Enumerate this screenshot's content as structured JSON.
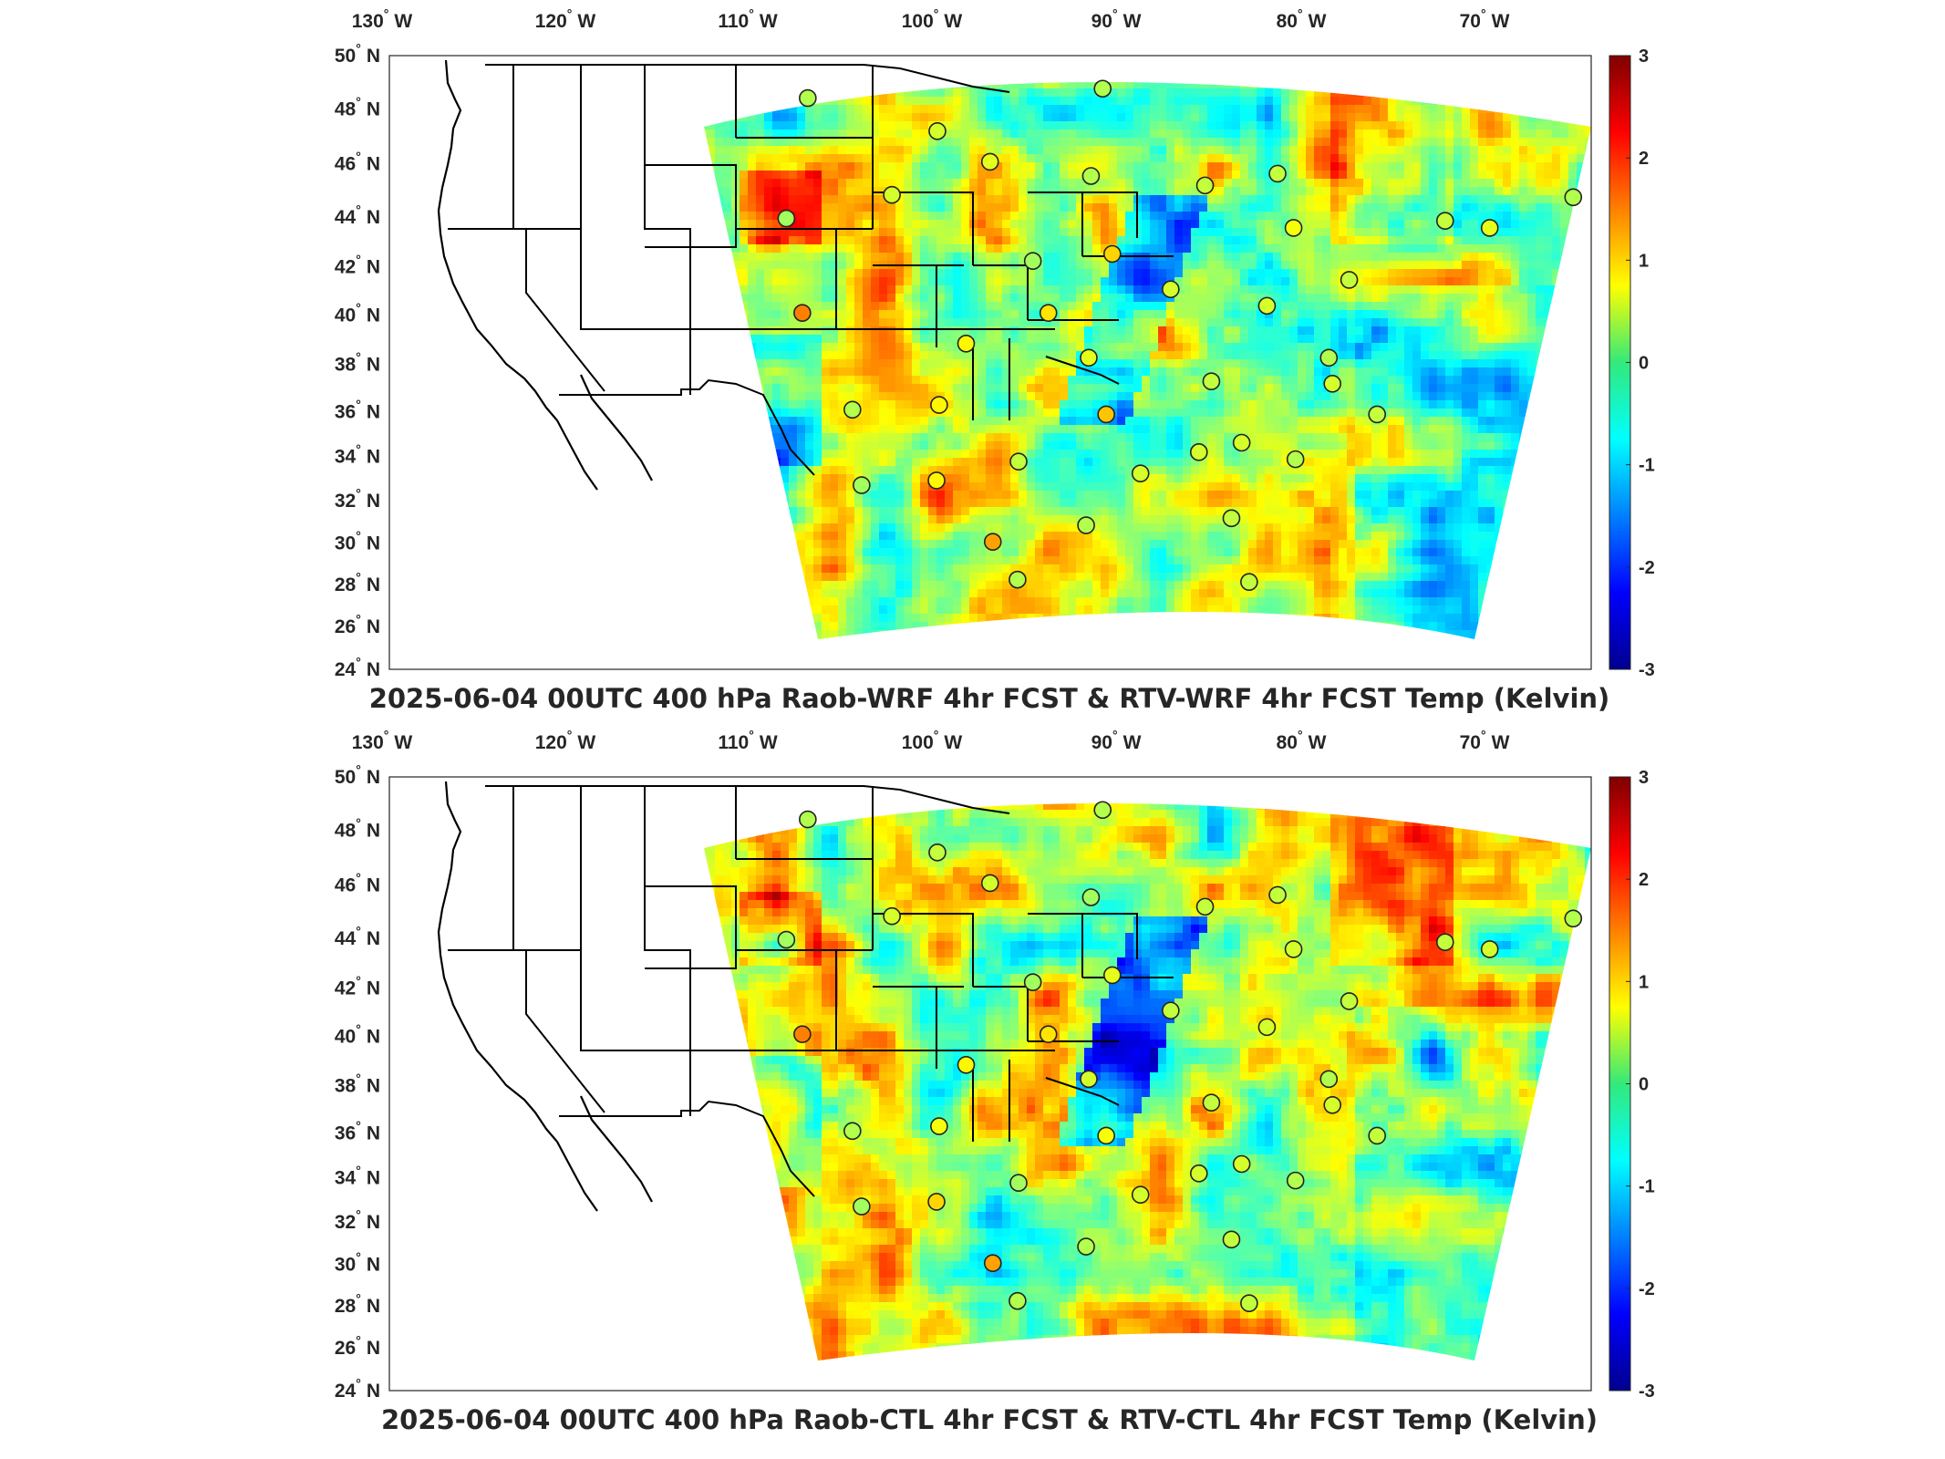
{
  "panels": [
    {
      "id": "top",
      "title": "2025-06-04 00UTC 400 hPa Raob-WRF 4hr FCST & RTV-WRF 4hr FCST Temp (Kelvin)",
      "lon_ticks": [
        "130",
        "120",
        "110",
        "100",
        "90",
        "80",
        "70"
      ],
      "lon_hemi": "W",
      "lat_ticks": [
        "50",
        "48",
        "46",
        "44",
        "42",
        "40",
        "38",
        "36",
        "34",
        "32",
        "30",
        "28",
        "26",
        "24"
      ],
      "lat_hemi": "N",
      "colorbar_ticks": [
        "3",
        "2",
        "1",
        "0",
        "-1",
        "-2",
        "-3"
      ],
      "stations": [
        {
          "lon": -106.6,
          "lat": 48.2,
          "diff": 0.3
        },
        {
          "lon": -100.8,
          "lat": 46.8,
          "diff": 0.5
        },
        {
          "lon": -93.2,
          "lat": 48.6,
          "diff": 0.3
        },
        {
          "lon": -98.4,
          "lat": 45.5,
          "diff": 0.6
        },
        {
          "lon": -93.6,
          "lat": 44.9,
          "diff": 0.3
        },
        {
          "lon": -88.1,
          "lat": 44.5,
          "diff": 0.4
        },
        {
          "lon": -84.7,
          "lat": 45.0,
          "diff": 0.4
        },
        {
          "lon": -103.2,
          "lat": 44.1,
          "diff": 0.5
        },
        {
          "lon": -108.5,
          "lat": 43.1,
          "diff": 0.2
        },
        {
          "lon": -83.5,
          "lat": 42.7,
          "diff": 0.7
        },
        {
          "lon": -76.1,
          "lat": 43.0,
          "diff": 0.4
        },
        {
          "lon": -73.8,
          "lat": 42.7,
          "diff": 0.6
        },
        {
          "lon": -70.2,
          "lat": 44.0,
          "diff": 0.3
        },
        {
          "lon": -92.4,
          "lat": 41.6,
          "diff": 1.0
        },
        {
          "lon": -96.4,
          "lat": 41.3,
          "diff": 0.2
        },
        {
          "lon": -89.3,
          "lat": 40.1,
          "diff": 0.5
        },
        {
          "lon": -80.2,
          "lat": 40.5,
          "diff": 0.4
        },
        {
          "lon": -108.5,
          "lat": 39.1,
          "diff": 1.5
        },
        {
          "lon": -95.6,
          "lat": 39.1,
          "diff": 0.9
        },
        {
          "lon": -84.2,
          "lat": 39.4,
          "diff": 0.5
        },
        {
          "lon": -100.0,
          "lat": 37.8,
          "diff": 0.8
        },
        {
          "lon": -93.4,
          "lat": 37.2,
          "diff": 0.6
        },
        {
          "lon": -80.4,
          "lat": 37.2,
          "diff": 0.3
        },
        {
          "lon": -86.6,
          "lat": 36.2,
          "diff": 0.4
        },
        {
          "lon": -79.9,
          "lat": 36.1,
          "diff": 0.5
        },
        {
          "lon": -101.7,
          "lat": 35.2,
          "diff": 0.8
        },
        {
          "lon": -106.6,
          "lat": 35.0,
          "diff": 0.3
        },
        {
          "lon": -92.3,
          "lat": 34.8,
          "diff": 1.1
        },
        {
          "lon": -77.0,
          "lat": 34.8,
          "diff": 0.4
        },
        {
          "lon": -97.3,
          "lat": 32.8,
          "diff": 0.4
        },
        {
          "lon": -90.1,
          "lat": 32.3,
          "diff": 0.5
        },
        {
          "lon": -86.8,
          "lat": 33.2,
          "diff": 0.5
        },
        {
          "lon": -84.4,
          "lat": 33.6,
          "diff": 0.5
        },
        {
          "lon": -81.1,
          "lat": 32.9,
          "diff": 0.3
        },
        {
          "lon": -102.2,
          "lat": 32.0,
          "diff": 0.8
        },
        {
          "lon": -106.7,
          "lat": 31.8,
          "diff": 0.2
        },
        {
          "lon": -93.2,
          "lat": 30.1,
          "diff": 0.3
        },
        {
          "lon": -84.3,
          "lat": 30.4,
          "diff": 0.4
        },
        {
          "lon": -99.0,
          "lat": 29.4,
          "diff": 1.3
        },
        {
          "lon": -97.5,
          "lat": 27.8,
          "diff": 0.3
        },
        {
          "lon": -82.5,
          "lat": 27.7,
          "diff": 0.4
        }
      ]
    },
    {
      "id": "bottom",
      "title": "2025-06-04 00UTC 400 hPa Raob-CTL 4hr FCST & RTV-CTL 4hr FCST Temp (Kelvin)",
      "lon_ticks": [
        "130",
        "120",
        "110",
        "100",
        "90",
        "80",
        "70"
      ],
      "lon_hemi": "W",
      "lat_ticks": [
        "50",
        "48",
        "46",
        "44",
        "42",
        "40",
        "38",
        "36",
        "34",
        "32",
        "30",
        "28",
        "26",
        "24"
      ],
      "lat_hemi": "N",
      "colorbar_ticks": [
        "3",
        "2",
        "1",
        "0",
        "-1",
        "-2",
        "-3"
      ],
      "stations": [
        {
          "lon": -106.6,
          "lat": 48.2,
          "diff": 0.3
        },
        {
          "lon": -100.8,
          "lat": 46.8,
          "diff": 0.4
        },
        {
          "lon": -93.2,
          "lat": 48.6,
          "diff": 0.3
        },
        {
          "lon": -98.4,
          "lat": 45.5,
          "diff": 0.5
        },
        {
          "lon": -93.6,
          "lat": 44.9,
          "diff": 0.2
        },
        {
          "lon": -88.1,
          "lat": 44.5,
          "diff": 0.4
        },
        {
          "lon": -84.7,
          "lat": 45.0,
          "diff": 0.4
        },
        {
          "lon": -103.2,
          "lat": 44.1,
          "diff": 0.5
        },
        {
          "lon": -108.5,
          "lat": 43.1,
          "diff": 0.2
        },
        {
          "lon": -83.5,
          "lat": 42.7,
          "diff": 0.5
        },
        {
          "lon": -76.1,
          "lat": 43.0,
          "diff": 0.4
        },
        {
          "lon": -73.8,
          "lat": 42.7,
          "diff": 0.5
        },
        {
          "lon": -70.2,
          "lat": 44.0,
          "diff": 0.3
        },
        {
          "lon": -92.4,
          "lat": 41.6,
          "diff": 0.6
        },
        {
          "lon": -96.4,
          "lat": 41.3,
          "diff": 0.2
        },
        {
          "lon": -89.3,
          "lat": 40.1,
          "diff": 0.4
        },
        {
          "lon": -80.2,
          "lat": 40.5,
          "diff": 0.4
        },
        {
          "lon": -108.5,
          "lat": 39.1,
          "diff": 1.5
        },
        {
          "lon": -95.6,
          "lat": 39.1,
          "diff": 0.9
        },
        {
          "lon": -84.2,
          "lat": 39.4,
          "diff": 0.5
        },
        {
          "lon": -100.0,
          "lat": 37.8,
          "diff": 0.8
        },
        {
          "lon": -93.4,
          "lat": 37.2,
          "diff": 0.5
        },
        {
          "lon": -80.4,
          "lat": 37.2,
          "diff": 0.3
        },
        {
          "lon": -86.6,
          "lat": 36.2,
          "diff": 0.4
        },
        {
          "lon": -79.9,
          "lat": 36.1,
          "diff": 0.5
        },
        {
          "lon": -101.7,
          "lat": 35.2,
          "diff": 0.7
        },
        {
          "lon": -106.6,
          "lat": 35.0,
          "diff": 0.3
        },
        {
          "lon": -92.3,
          "lat": 34.8,
          "diff": 0.7
        },
        {
          "lon": -77.0,
          "lat": 34.8,
          "diff": 0.4
        },
        {
          "lon": -97.3,
          "lat": 32.8,
          "diff": 0.2
        },
        {
          "lon": -90.1,
          "lat": 32.3,
          "diff": 0.5
        },
        {
          "lon": -86.8,
          "lat": 33.2,
          "diff": 0.5
        },
        {
          "lon": -84.4,
          "lat": 33.6,
          "diff": 0.5
        },
        {
          "lon": -81.1,
          "lat": 32.9,
          "diff": 0.3
        },
        {
          "lon": -102.2,
          "lat": 32.0,
          "diff": 1.0
        },
        {
          "lon": -106.7,
          "lat": 31.8,
          "diff": 0.2
        },
        {
          "lon": -93.2,
          "lat": 30.1,
          "diff": 0.3
        },
        {
          "lon": -84.3,
          "lat": 30.4,
          "diff": 0.4
        },
        {
          "lon": -99.0,
          "lat": 29.4,
          "diff": 1.3
        },
        {
          "lon": -97.5,
          "lat": 27.8,
          "diff": 0.3
        },
        {
          "lon": -82.5,
          "lat": 27.7,
          "diff": 0.4
        }
      ]
    }
  ],
  "colormap": "jet",
  "colorbar_range": [
    -3,
    3
  ]
}
